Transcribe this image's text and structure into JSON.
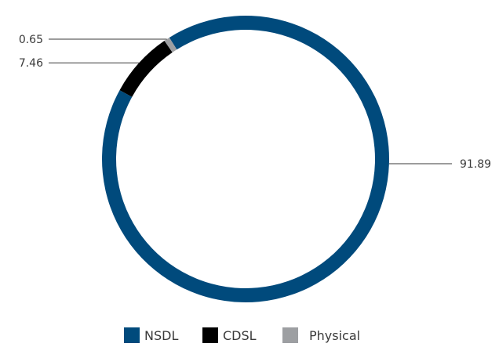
{
  "chart_data": {
    "type": "pie",
    "variant": "donut",
    "categories": [
      "NSDL",
      "CDSL",
      "Physical"
    ],
    "values": [
      91.89,
      7.46,
      0.65
    ],
    "value_labels": [
      "91.89",
      "7.46",
      "0.65"
    ],
    "colors": [
      "#004a7c",
      "#000000",
      "#9d9fa2"
    ],
    "legend_position": "bottom"
  }
}
